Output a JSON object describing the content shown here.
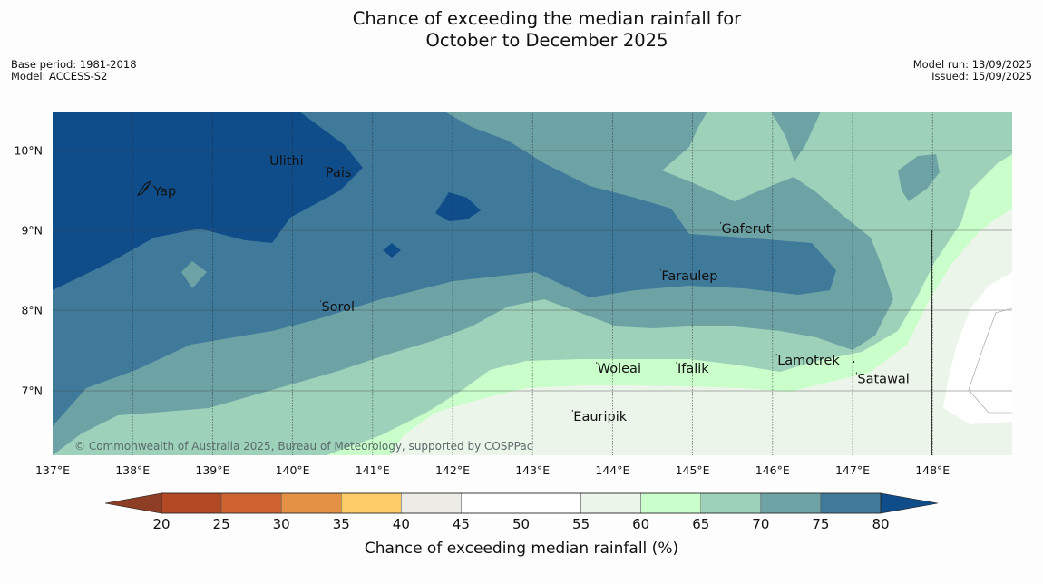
{
  "title": {
    "line1": "Chance of exceeding the median rainfall for",
    "line2": "October to December 2025"
  },
  "info_left": {
    "base_period": "Base period: 1981-2018",
    "model": "Model: ACCESS-S2"
  },
  "info_right": {
    "model_run": "Model run: 13/09/2025",
    "issued": "Issued: 15/09/2025"
  },
  "map": {
    "lon_range": [
      137,
      149
    ],
    "lat_range": [
      6.2,
      10.5
    ],
    "grid": true,
    "lon_ticks": [
      "137°E",
      "138°E",
      "139°E",
      "140°E",
      "141°E",
      "142°E",
      "143°E",
      "144°E",
      "145°E",
      "146°E",
      "147°E",
      "148°E"
    ],
    "lat_ticks": [
      "10°N",
      "9°N",
      "8°N",
      "7°N"
    ],
    "places": [
      {
        "name": "Yap",
        "lon": 138.25,
        "lat": 9.52
      },
      {
        "name": "Ulithi",
        "lon": 139.7,
        "lat": 9.9
      },
      {
        "name": "Pais",
        "lon": 140.4,
        "lat": 9.75
      },
      {
        "name": "Gaferut",
        "lon": 145.35,
        "lat": 9.05
      },
      {
        "name": "Faraulep",
        "lon": 144.6,
        "lat": 8.46
      },
      {
        "name": "Sorol",
        "lon": 140.35,
        "lat": 8.07
      },
      {
        "name": "Lamotrek",
        "lon": 146.05,
        "lat": 7.4
      },
      {
        "name": "Woleai",
        "lon": 143.8,
        "lat": 7.3
      },
      {
        "name": "Ifalik",
        "lon": 144.8,
        "lat": 7.3
      },
      {
        "name": "Satawal",
        "lon": 147.05,
        "lat": 7.17
      },
      {
        "name": "Eauripik",
        "lon": 143.5,
        "lat": 6.7
      }
    ],
    "copyright": "© Commonwealth of Australia 2025, Bureau of Meteorology, supported by COSPPac"
  },
  "colorbar": {
    "title": "Chance of exceeding median rainfall (%)",
    "ticks": [
      "20",
      "25",
      "30",
      "35",
      "40",
      "45",
      "50",
      "55",
      "60",
      "65",
      "70",
      "75",
      "80"
    ],
    "under_color": "#8e3e24",
    "over_color": "#0f4d8a",
    "bin_colors": [
      "#b24a26",
      "#cf6330",
      "#e49146",
      "#fdcc66",
      "#ecebe6",
      "#ffffff",
      "#ffffff",
      "#ebf5e9",
      "#caffcb",
      "#9dd1b9",
      "#6ea3a6",
      "#3f7a9b"
    ]
  }
}
